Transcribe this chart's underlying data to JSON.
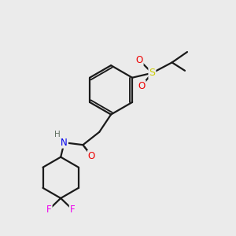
{
  "background_color": "#ebebeb",
  "bond_color": "#1a1a1a",
  "atom_colors": {
    "N": "#0000ee",
    "O": "#ee0000",
    "S": "#cccc00",
    "F": "#ee00ee",
    "H": "#607060",
    "C": "#1a1a1a"
  },
  "figsize": [
    3.0,
    3.0
  ],
  "dpi": 100
}
